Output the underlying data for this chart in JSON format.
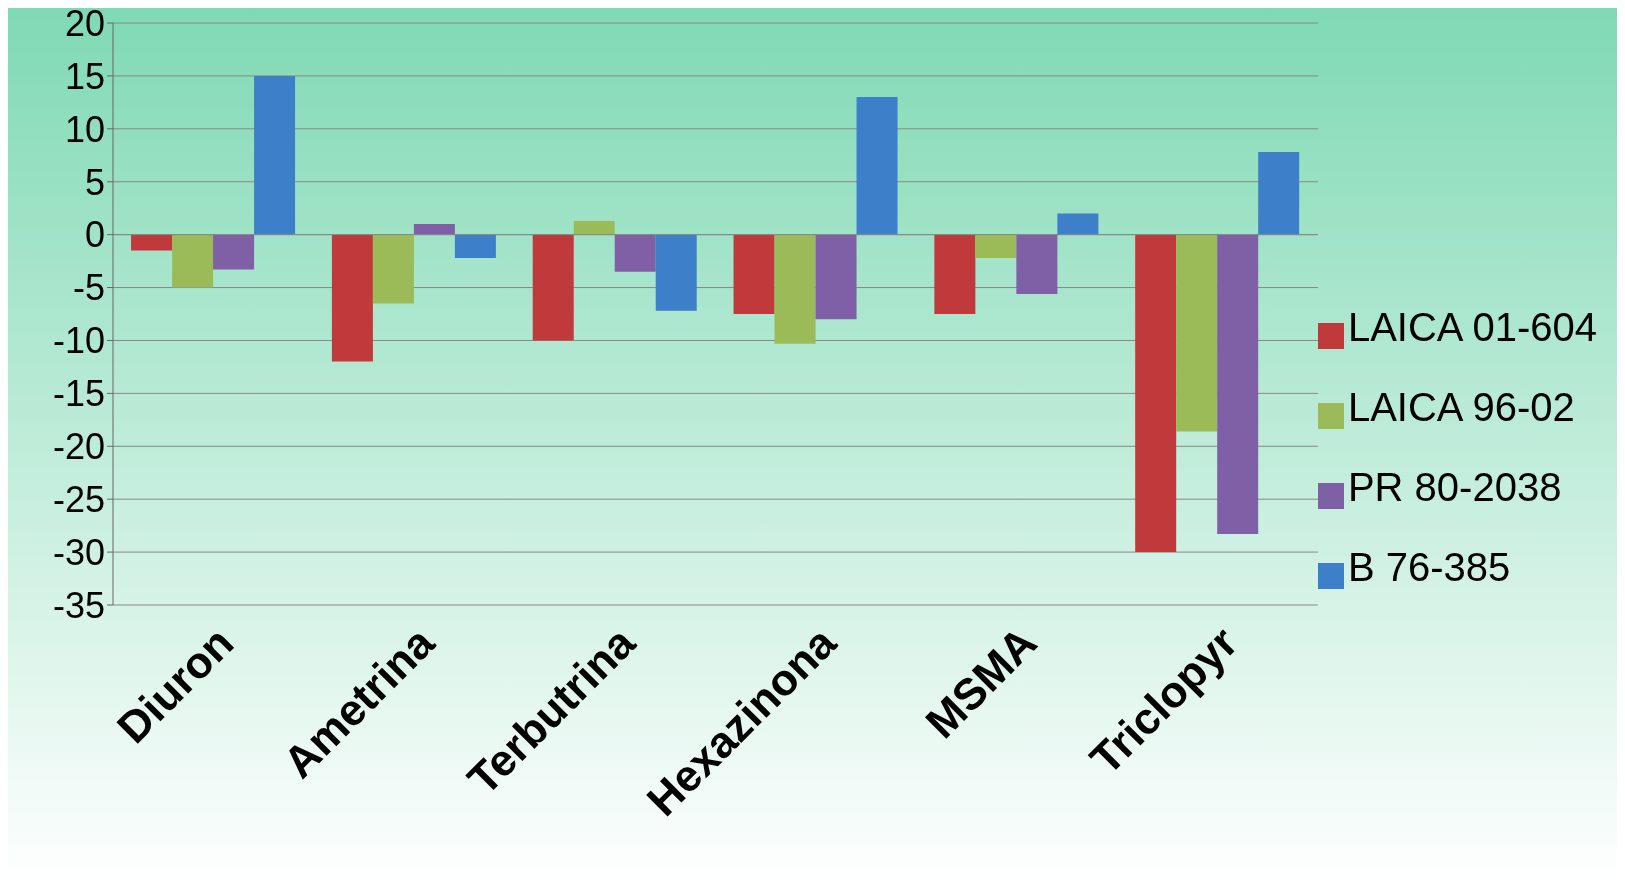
{
  "chart_data": {
    "type": "bar",
    "categories": [
      "Diuron",
      "Ametrina",
      "Terbutrina",
      "Hexazinona",
      "MSMA",
      "Triclopyr"
    ],
    "series": [
      {
        "name": "LAICA 01-604",
        "color": "#c0393b",
        "values": [
          -1.5,
          -12,
          -10,
          -7.5,
          -7.5,
          -30
        ]
      },
      {
        "name": "LAICA 96-02",
        "color": "#9bbb59",
        "values": [
          -5,
          -6.5,
          1.3,
          -10.3,
          -2.2,
          -18.6
        ]
      },
      {
        "name": "PR 80-2038",
        "color": "#7f5fa5",
        "values": [
          -3.3,
          1,
          -3.5,
          -8,
          -5.6,
          -28.3
        ]
      },
      {
        "name": "B 76-385",
        "color": "#3d7fc8",
        "values": [
          15,
          -2.2,
          -7.2,
          13,
          2,
          7.8
        ]
      }
    ],
    "ylim": [
      -35,
      20
    ],
    "yticks": [
      -35,
      -30,
      -25,
      -20,
      -15,
      -10,
      -5,
      0,
      5,
      10,
      15,
      20
    ],
    "grid": "y",
    "legend": "right"
  }
}
